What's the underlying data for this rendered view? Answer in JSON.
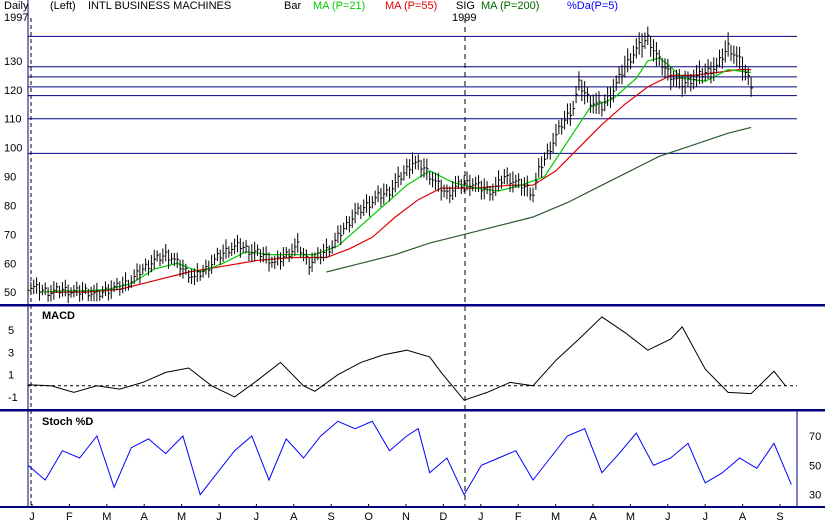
{
  "header": {
    "period": "Daily",
    "scale": "(Left)",
    "title": "INTL BUSINESS MACHINES",
    "bar": "Bar",
    "indicators": [
      {
        "label": "MA (P=21)",
        "color": "#00cc00"
      },
      {
        "label": "MA (P=55)",
        "color": "#e00000"
      },
      {
        "label": "SIG",
        "color": "#000000"
      },
      {
        "label": "MA (P=200)",
        "color": "#006600"
      },
      {
        "label": "%Da(P=5)",
        "color": "#0000ff"
      }
    ],
    "year_start": "1997",
    "year_mid": "1999"
  },
  "colors": {
    "divider": "#000080",
    "ma21": "#00cc00",
    "ma55": "#e00000",
    "ma200": "#2e5a2e",
    "stoch": "#0000ff",
    "price": "#000000",
    "hline": "#000080"
  },
  "chart_data": {
    "type": "line",
    "xlabel": "",
    "ylabel": "",
    "x_labels": [
      "J",
      "F",
      "M",
      "A",
      "M",
      "J",
      "J",
      "A",
      "S",
      "O",
      "N",
      "D",
      "J",
      "F",
      "M",
      "A",
      "M",
      "J",
      "J",
      "A",
      "S"
    ],
    "price_panel": {
      "ylim": [
        48,
        140
      ],
      "yticks": [
        50,
        60,
        70,
        80,
        90,
        100,
        110,
        120,
        130
      ],
      "hlines": [
        138.5,
        128,
        124.5,
        121,
        118,
        110,
        98
      ],
      "price_path": [
        [
          0,
          52
        ],
        [
          2,
          51
        ],
        [
          4,
          50
        ],
        [
          6,
          51
        ],
        [
          8,
          50
        ],
        [
          10,
          50.5
        ],
        [
          12,
          49
        ],
        [
          14,
          51
        ],
        [
          16,
          52
        ],
        [
          18,
          54
        ],
        [
          20,
          58
        ],
        [
          22,
          61
        ],
        [
          24,
          63
        ],
        [
          25,
          62
        ],
        [
          27,
          58
        ],
        [
          29,
          55
        ],
        [
          31,
          58
        ],
        [
          33,
          62
        ],
        [
          35,
          65
        ],
        [
          37,
          66
        ],
        [
          39,
          64
        ],
        [
          41,
          63
        ],
        [
          43,
          60
        ],
        [
          45,
          63
        ],
        [
          47,
          66
        ],
        [
          49,
          60
        ],
        [
          51,
          63
        ],
        [
          53,
          66
        ],
        [
          55,
          72
        ],
        [
          57,
          77
        ],
        [
          59,
          80
        ],
        [
          61,
          83
        ],
        [
          63,
          85
        ],
        [
          65,
          90
        ],
        [
          67,
          95
        ],
        [
          69,
          93
        ],
        [
          71,
          88
        ],
        [
          73,
          84
        ],
        [
          75,
          87
        ],
        [
          77,
          88
        ],
        [
          79,
          86
        ],
        [
          81,
          85
        ],
        [
          83,
          90
        ],
        [
          85,
          88
        ],
        [
          87,
          86
        ],
        [
          88,
          84
        ],
        [
          89,
          92
        ],
        [
          91,
          100
        ],
        [
          93,
          108
        ],
        [
          95,
          114
        ],
        [
          96,
          122
        ],
        [
          98,
          116
        ],
        [
          100,
          114
        ],
        [
          102,
          120
        ],
        [
          104,
          128
        ],
        [
          106,
          134
        ],
        [
          108,
          138
        ],
        [
          110,
          130
        ],
        [
          112,
          125
        ],
        [
          114,
          122
        ],
        [
          116,
          124
        ],
        [
          118,
          126
        ],
        [
          120,
          128
        ],
        [
          122,
          135
        ],
        [
          124,
          130
        ],
        [
          126,
          122
        ]
      ],
      "ma21_path": [
        [
          2,
          50
        ],
        [
          6,
          50.5
        ],
        [
          10,
          50.5
        ],
        [
          14,
          51
        ],
        [
          18,
          53
        ],
        [
          22,
          58
        ],
        [
          26,
          60
        ],
        [
          30,
          57
        ],
        [
          34,
          60
        ],
        [
          38,
          64
        ],
        [
          42,
          63
        ],
        [
          46,
          63
        ],
        [
          50,
          63
        ],
        [
          54,
          66
        ],
        [
          58,
          73
        ],
        [
          62,
          80
        ],
        [
          66,
          87
        ],
        [
          70,
          92
        ],
        [
          74,
          88
        ],
        [
          78,
          86
        ],
        [
          82,
          85
        ],
        [
          86,
          87
        ],
        [
          90,
          90
        ],
        [
          94,
          102
        ],
        [
          98,
          114
        ],
        [
          102,
          117
        ],
        [
          106,
          124
        ],
        [
          108,
          130
        ],
        [
          110,
          131
        ],
        [
          112,
          128
        ],
        [
          114,
          124
        ],
        [
          118,
          123
        ],
        [
          122,
          127
        ],
        [
          126,
          126
        ]
      ],
      "ma55_path": [
        [
          4,
          50
        ],
        [
          10,
          50
        ],
        [
          16,
          51
        ],
        [
          22,
          54
        ],
        [
          28,
          57
        ],
        [
          34,
          59
        ],
        [
          40,
          61
        ],
        [
          46,
          62
        ],
        [
          52,
          62
        ],
        [
          56,
          65
        ],
        [
          60,
          69
        ],
        [
          64,
          76
        ],
        [
          68,
          82
        ],
        [
          72,
          86
        ],
        [
          78,
          86
        ],
        [
          84,
          87
        ],
        [
          88,
          87
        ],
        [
          92,
          92
        ],
        [
          96,
          100
        ],
        [
          100,
          108
        ],
        [
          104,
          115
        ],
        [
          108,
          121
        ],
        [
          112,
          125
        ],
        [
          116,
          125
        ],
        [
          120,
          126
        ],
        [
          124,
          127
        ],
        [
          126,
          127
        ]
      ],
      "ma200_path": [
        [
          52,
          57
        ],
        [
          58,
          60
        ],
        [
          64,
          63
        ],
        [
          70,
          67
        ],
        [
          76,
          70
        ],
        [
          82,
          73
        ],
        [
          88,
          76
        ],
        [
          94,
          81
        ],
        [
          100,
          87
        ],
        [
          106,
          93
        ],
        [
          110,
          97
        ],
        [
          116,
          101
        ],
        [
          122,
          105
        ],
        [
          126,
          107
        ]
      ]
    },
    "macd_panel": {
      "title": "MACD",
      "ylim": [
        -2,
        7
      ],
      "yticks": [
        5,
        3,
        1,
        -1
      ],
      "zero_line": 0,
      "macd_path": [
        [
          0,
          0.1
        ],
        [
          4,
          0
        ],
        [
          8,
          -0.6
        ],
        [
          12,
          0
        ],
        [
          16,
          -0.3
        ],
        [
          20,
          0.3
        ],
        [
          24,
          1.2
        ],
        [
          28,
          1.6
        ],
        [
          32,
          0
        ],
        [
          36,
          -1
        ],
        [
          40,
          0.5
        ],
        [
          44,
          2.1
        ],
        [
          48,
          0
        ],
        [
          50,
          -0.5
        ],
        [
          54,
          1
        ],
        [
          58,
          2.1
        ],
        [
          62,
          2.8
        ],
        [
          66,
          3.2
        ],
        [
          70,
          2.6
        ],
        [
          72,
          1.2
        ],
        [
          76,
          -1.3
        ],
        [
          80,
          -0.6
        ],
        [
          84,
          0.3
        ],
        [
          88,
          0
        ],
        [
          92,
          2.3
        ],
        [
          96,
          4.2
        ],
        [
          100,
          6.2
        ],
        [
          104,
          4.8
        ],
        [
          108,
          3.2
        ],
        [
          112,
          4.2
        ],
        [
          114,
          5.3
        ],
        [
          118,
          1.5
        ],
        [
          122,
          -0.6
        ],
        [
          126,
          -0.7
        ],
        [
          130,
          1.3
        ],
        [
          132,
          0
        ]
      ]
    },
    "stoch_panel": {
      "title": "Stoch %D",
      "ylim": [
        25,
        85
      ],
      "yticks": [
        70,
        50,
        30
      ],
      "stoch_path": [
        [
          0,
          50
        ],
        [
          3,
          40
        ],
        [
          6,
          60
        ],
        [
          9,
          55
        ],
        [
          12,
          70
        ],
        [
          15,
          35
        ],
        [
          18,
          62
        ],
        [
          21,
          68
        ],
        [
          24,
          58
        ],
        [
          27,
          70
        ],
        [
          30,
          30
        ],
        [
          33,
          45
        ],
        [
          36,
          60
        ],
        [
          39,
          70
        ],
        [
          42,
          40
        ],
        [
          45,
          68
        ],
        [
          48,
          55
        ],
        [
          51,
          70
        ],
        [
          54,
          80
        ],
        [
          57,
          75
        ],
        [
          60,
          80
        ],
        [
          63,
          60
        ],
        [
          66,
          70
        ],
        [
          68,
          75
        ],
        [
          70,
          45
        ],
        [
          73,
          55
        ],
        [
          76,
          30
        ],
        [
          79,
          50
        ],
        [
          82,
          55
        ],
        [
          85,
          60
        ],
        [
          88,
          40
        ],
        [
          91,
          55
        ],
        [
          94,
          70
        ],
        [
          97,
          75
        ],
        [
          100,
          45
        ],
        [
          103,
          58
        ],
        [
          106,
          72
        ],
        [
          109,
          50
        ],
        [
          112,
          55
        ],
        [
          115,
          65
        ],
        [
          118,
          38
        ],
        [
          121,
          45
        ],
        [
          124,
          55
        ],
        [
          127,
          48
        ],
        [
          130,
          65
        ],
        [
          133,
          37
        ]
      ]
    }
  }
}
